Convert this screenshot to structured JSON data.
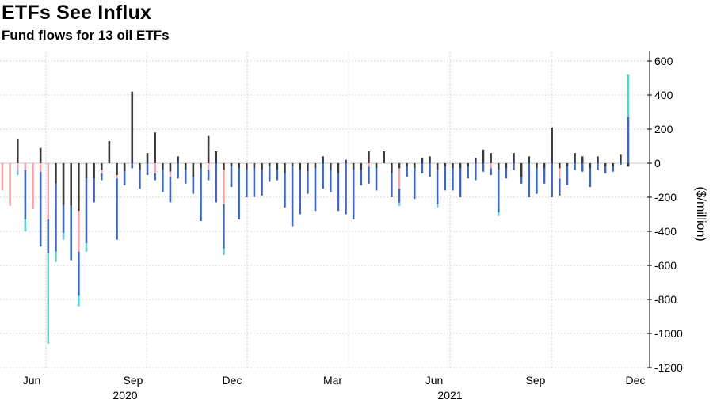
{
  "title": "ETFs See Influx",
  "subtitle": "Fund flows for 13 oil ETFs",
  "chart_data": {
    "type": "bar",
    "stacked": true,
    "ylabel": "($/million)",
    "ylim": [
      -1200,
      650
    ],
    "yticks": [
      600,
      400,
      200,
      0,
      -200,
      -400,
      -600,
      -800,
      -1000,
      -1200
    ],
    "grid": true,
    "x_month_labels": [
      "Jun",
      "Sep",
      "Dec",
      "Mar",
      "Jun",
      "Sep",
      "Dec"
    ],
    "x_year_labels": [
      "2020",
      "2021"
    ],
    "segment_colors": [
      "#3a3a3a",
      "#f4a4a8",
      "#4169b8",
      "#5fd0d2"
    ],
    "weeks": [
      [
        0,
        -160,
        0,
        0
      ],
      [
        0,
        -250,
        0,
        0
      ],
      [
        140,
        -40,
        0,
        -30
      ],
      [
        0,
        -40,
        -290,
        -70
      ],
      [
        0,
        -270,
        0,
        0
      ],
      [
        90,
        -50,
        -440,
        0
      ],
      [
        0,
        -330,
        -200,
        -530
      ],
      [
        -120,
        0,
        -400,
        -60
      ],
      [
        -250,
        0,
        -160,
        -40
      ],
      [
        -250,
        0,
        -320,
        0
      ],
      [
        -280,
        -240,
        -260,
        -60
      ],
      [
        -90,
        0,
        -380,
        -50
      ],
      [
        -90,
        0,
        -140,
        0
      ],
      [
        -40,
        -20,
        -40,
        0
      ],
      [
        130,
        0,
        0,
        0
      ],
      [
        -70,
        -20,
        -360,
        0
      ],
      [
        -50,
        0,
        -80,
        0
      ],
      [
        420,
        0,
        -30,
        0
      ],
      [
        -40,
        0,
        -110,
        0
      ],
      [
        60,
        0,
        -70,
        0
      ],
      [
        180,
        -60,
        -40,
        0
      ],
      [
        -40,
        0,
        -130,
        0
      ],
      [
        -50,
        -30,
        -150,
        0
      ],
      [
        40,
        0,
        -90,
        0
      ],
      [
        -40,
        0,
        -80,
        0
      ],
      [
        -80,
        0,
        -100,
        0
      ],
      [
        -30,
        0,
        -310,
        0
      ],
      [
        160,
        -40,
        -60,
        0
      ],
      [
        70,
        0,
        -230,
        0
      ],
      [
        -40,
        -200,
        -260,
        -40
      ],
      [
        -20,
        0,
        -120,
        0
      ],
      [
        -30,
        0,
        -300,
        0
      ],
      [
        -40,
        0,
        -160,
        0
      ],
      [
        -30,
        0,
        -170,
        0
      ],
      [
        -40,
        0,
        -150,
        0
      ],
      [
        -20,
        0,
        -90,
        0
      ],
      [
        -40,
        0,
        -60,
        0
      ],
      [
        -60,
        0,
        -200,
        0
      ],
      [
        -20,
        0,
        -350,
        0
      ],
      [
        -40,
        0,
        -260,
        0
      ],
      [
        -50,
        0,
        -130,
        0
      ],
      [
        -30,
        0,
        -250,
        0
      ],
      [
        40,
        0,
        -150,
        0
      ],
      [
        -40,
        0,
        -130,
        0
      ],
      [
        -60,
        0,
        -220,
        0
      ],
      [
        20,
        0,
        -300,
        0
      ],
      [
        -40,
        0,
        -290,
        0
      ],
      [
        -40,
        0,
        -90,
        0
      ],
      [
        70,
        -20,
        -100,
        0
      ],
      [
        -30,
        0,
        -130,
        0
      ],
      [
        70,
        0,
        0,
        0
      ],
      [
        -60,
        0,
        -140,
        0
      ],
      [
        -30,
        -120,
        -80,
        -20
      ],
      [
        -20,
        0,
        -60,
        0
      ],
      [
        -30,
        0,
        -180,
        0
      ],
      [
        30,
        0,
        -60,
        0
      ],
      [
        40,
        0,
        -80,
        0
      ],
      [
        -40,
        0,
        -200,
        -20
      ],
      [
        -20,
        0,
        -140,
        0
      ],
      [
        -30,
        0,
        -130,
        0
      ],
      [
        -30,
        0,
        -170,
        0
      ],
      [
        -20,
        0,
        -70,
        0
      ],
      [
        30,
        0,
        -100,
        0
      ],
      [
        80,
        0,
        -50,
        0
      ],
      [
        60,
        -30,
        -40,
        0
      ],
      [
        -40,
        0,
        -250,
        -20
      ],
      [
        -30,
        0,
        -60,
        0
      ],
      [
        60,
        0,
        -40,
        0
      ],
      [
        -80,
        0,
        -40,
        0
      ],
      [
        40,
        0,
        -200,
        0
      ],
      [
        -30,
        0,
        -150,
        0
      ],
      [
        -30,
        0,
        -90,
        0
      ],
      [
        210,
        0,
        -200,
        0
      ],
      [
        -30,
        -60,
        -100,
        0
      ],
      [
        -20,
        0,
        -110,
        0
      ],
      [
        60,
        0,
        -40,
        0
      ],
      [
        40,
        0,
        -50,
        0
      ],
      [
        -30,
        0,
        -110,
        0
      ],
      [
        40,
        0,
        -40,
        0
      ],
      [
        -20,
        0,
        -40,
        0
      ],
      [
        -20,
        0,
        -30,
        0
      ],
      [
        50,
        0,
        -10,
        0
      ],
      [
        -20,
        0,
        270,
        250
      ]
    ]
  }
}
